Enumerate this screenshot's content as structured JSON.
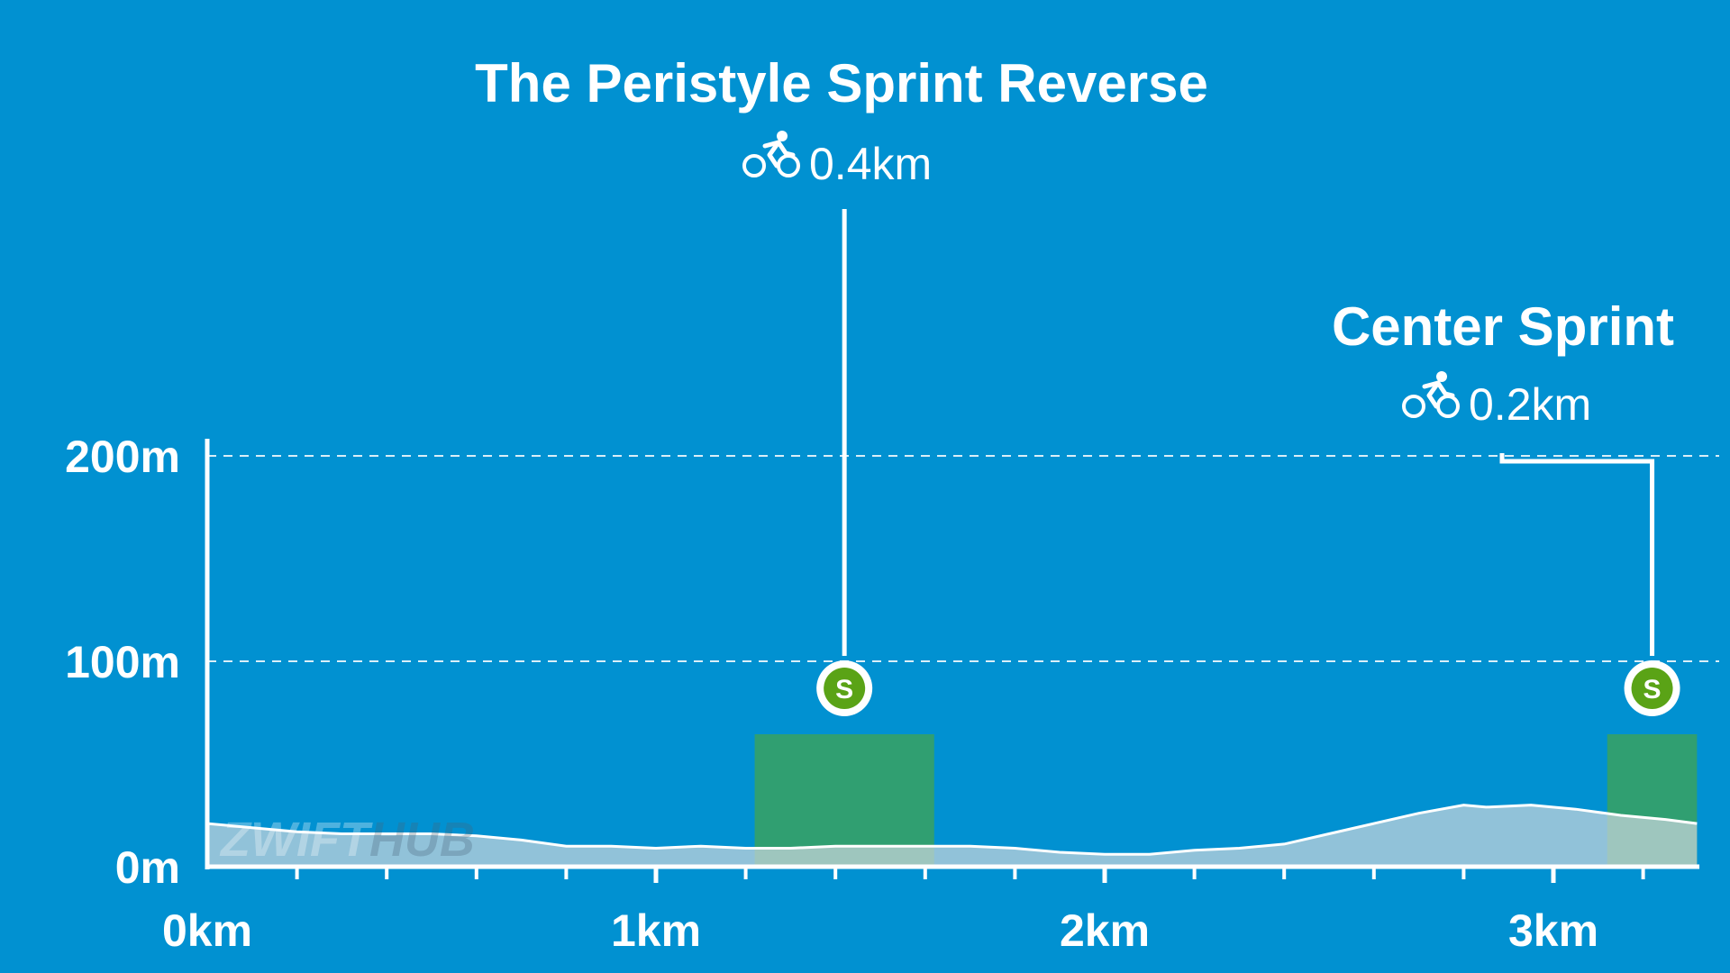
{
  "colors": {
    "background": "#0191d1",
    "profile_fill": "#c9d5dc",
    "sprint_zone": "#3ea356",
    "sprint_badge": "#5aa316",
    "white": "#ffffff"
  },
  "watermark": {
    "part1": "ZWIFT",
    "part2": "HUB"
  },
  "chart_data": {
    "type": "area",
    "title": "",
    "xlabel": "",
    "ylabel": "",
    "xlim": [
      0,
      3.32
    ],
    "ylim": [
      0,
      200
    ],
    "grid": {
      "horizontal_dashed": [
        100,
        200
      ]
    },
    "x_ticks": [
      {
        "value": 0,
        "label": "0km"
      },
      {
        "value": 1,
        "label": "1km"
      },
      {
        "value": 2,
        "label": "2km"
      },
      {
        "value": 3,
        "label": "3km"
      }
    ],
    "x_minor_step": 0.2,
    "y_ticks": [
      {
        "value": 0,
        "label": "0m"
      },
      {
        "value": 100,
        "label": "100m"
      },
      {
        "value": 200,
        "label": "200m"
      }
    ],
    "series": [
      {
        "x": [
          0,
          0.1,
          0.2,
          0.3,
          0.4,
          0.5,
          0.6,
          0.7,
          0.8,
          0.9,
          1.0,
          1.1,
          1.2,
          1.3,
          1.4,
          1.5,
          1.6,
          1.7,
          1.8,
          1.9,
          2.0,
          2.1,
          2.2,
          2.3,
          2.4,
          2.5,
          2.6,
          2.7,
          2.8,
          2.85,
          2.95,
          3.05,
          3.15,
          3.25,
          3.32
        ],
        "y": [
          21,
          19,
          17,
          16,
          16,
          16,
          15,
          13,
          10,
          10,
          9,
          10,
          9,
          9,
          10,
          10,
          10,
          10,
          9,
          7,
          6,
          6,
          8,
          9,
          11,
          16,
          21,
          26,
          30,
          29,
          30,
          28,
          25,
          23,
          21
        ]
      }
    ],
    "segments": [
      {
        "name": "The Peristyle Sprint Reverse",
        "distance": "0.4km",
        "start": 1.22,
        "end": 1.62,
        "badge": "S"
      },
      {
        "name": "Center Sprint",
        "distance": "0.2km",
        "start": 3.12,
        "end": 3.32,
        "badge": "S"
      }
    ]
  }
}
